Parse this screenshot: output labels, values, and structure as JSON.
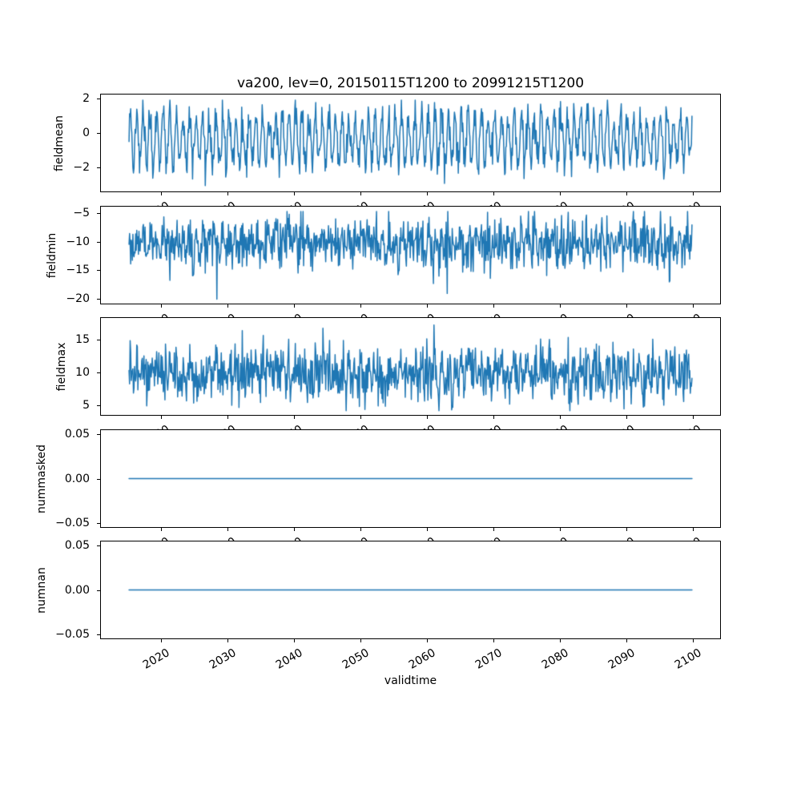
{
  "chart_data": {
    "type": "line",
    "title": "va200, lev=0, 20150115T1200 to 20991215T1200",
    "xlabel": "validtime",
    "x_tick_labels": [
      "2020",
      "2030",
      "2040",
      "2050",
      "2060",
      "2070",
      "2080",
      "2090",
      "2100"
    ],
    "x_tick_years": [
      2020,
      2030,
      2040,
      2050,
      2060,
      2070,
      2080,
      2090,
      2100
    ],
    "xlim": [
      2010.8,
      2104.2
    ],
    "x_data_start": 2015.04,
    "x_data_end": 2099.96,
    "samples_per_year": 12,
    "x_tick_rotation_deg": 30,
    "line_color": "#1f77b4",
    "grid": false,
    "legend": false,
    "subplots": [
      {
        "ylabel": "fieldmean",
        "yticks": [
          2,
          0,
          -2
        ],
        "ytick_labels": [
          "2",
          "0",
          "−2"
        ],
        "ylim": [
          -3.44,
          2.28
        ],
        "series": {
          "pattern": "seasonal_noise",
          "base": -0.35,
          "seasonal_amplitude": 1.35,
          "noise_sd": 0.5,
          "min": -3.1,
          "max": 1.95,
          "seed": 11,
          "extremes": [
            {
              "year": 2026.5,
              "value": -3.1
            }
          ]
        }
      },
      {
        "ylabel": "fieldmin",
        "yticks": [
          -5,
          -10,
          -15,
          -20
        ],
        "ytick_labels": [
          "−5",
          "−10",
          "−15",
          "−20"
        ],
        "ylim": [
          -21.0,
          -3.75
        ],
        "series": {
          "pattern": "seasonal_noise",
          "base": -10.4,
          "seasonal_amplitude": 1.1,
          "noise_sd": 2.3,
          "min": -20.2,
          "max": -4.6,
          "seed": 22,
          "extremes": [
            {
              "year": 2028.3,
              "value": -20.2
            },
            {
              "year": 2063.0,
              "value": -19.2
            }
          ]
        }
      },
      {
        "ylabel": "fieldmax",
        "yticks": [
          15,
          10,
          5
        ],
        "ytick_labels": [
          "15",
          "10",
          "5"
        ],
        "ylim": [
          3.35,
          18.4
        ],
        "series": {
          "pattern": "seasonal_noise",
          "base": 9.7,
          "seasonal_amplitude": 0.9,
          "noise_sd": 2.1,
          "min": 4.0,
          "max": 17.3,
          "seed": 33,
          "extremes": [
            {
              "year": 2044.3,
              "value": 16.8
            },
            {
              "year": 2061.0,
              "value": 17.3
            },
            {
              "year": 2050.6,
              "value": 4.2
            }
          ]
        }
      },
      {
        "ylabel": "nummasked",
        "yticks": [
          0.05,
          0,
          -0.05
        ],
        "ytick_labels": [
          "0.05",
          "0.00",
          "−0.05"
        ],
        "ylim": [
          -0.0557,
          0.0557
        ],
        "series": {
          "pattern": "constant",
          "value": 0
        }
      },
      {
        "ylabel": "numnan",
        "yticks": [
          0.05,
          0,
          -0.05
        ],
        "ytick_labels": [
          "0.05",
          "0.00",
          "−0.05"
        ],
        "ylim": [
          -0.0557,
          0.0557
        ],
        "series": {
          "pattern": "constant",
          "value": 0
        }
      }
    ]
  }
}
